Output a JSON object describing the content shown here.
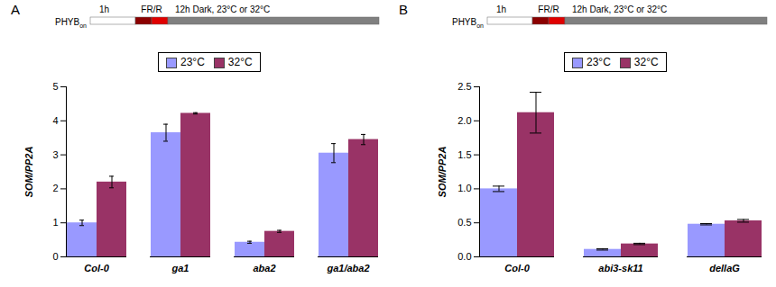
{
  "chart_data": [
    {
      "type": "bar",
      "panel": "A",
      "timeline": {
        "label": "PHYB",
        "label_subscript": "on",
        "segments": [
          "1h",
          "FR/R",
          "12h Dark, 23°C or 32°C"
        ]
      },
      "y_label": "SOM/PP2A",
      "categories": [
        "Col-0",
        "ga1",
        "aba2",
        "ga1/aba2"
      ],
      "series": [
        {
          "name": "23°C",
          "color": "#9999ff",
          "values": [
            1.0,
            3.65,
            0.43,
            3.05
          ],
          "errors": [
            0.08,
            0.25,
            0.03,
            0.28
          ]
        },
        {
          "name": "32°C",
          "color": "#993366",
          "values": [
            2.2,
            4.22,
            0.75,
            3.45
          ],
          "errors": [
            0.17,
            0.02,
            0.03,
            0.15
          ]
        }
      ],
      "ylim": [
        0,
        5
      ],
      "yticks": [
        0,
        1,
        2,
        3,
        4,
        5
      ],
      "grid": false,
      "legend": "top"
    },
    {
      "type": "bar",
      "panel": "B",
      "timeline": {
        "label": "PHYB",
        "label_subscript": "on",
        "segments": [
          "1h",
          "FR/R",
          "12h Dark, 23°C or 32°C"
        ]
      },
      "y_label": "SOM/PP2A",
      "categories": [
        "Col-0",
        "abi3-sk11",
        "dellaG"
      ],
      "series": [
        {
          "name": "23°C",
          "color": "#9999ff",
          "values": [
            1.0,
            0.11,
            0.48
          ],
          "errors": [
            0.04,
            0.01,
            0.01
          ]
        },
        {
          "name": "32°C",
          "color": "#993366",
          "values": [
            2.12,
            0.19,
            0.53
          ],
          "errors": [
            0.3,
            0.01,
            0.02
          ]
        }
      ],
      "ylim": [
        0,
        2.5
      ],
      "yticks": [
        {
          "value": 0,
          "label": "0.0"
        },
        {
          "value": 0.5,
          "label": "0.5"
        },
        {
          "value": 1,
          "label": "1.0"
        },
        {
          "value": 1.5,
          "label": "1.5"
        },
        {
          "value": 2,
          "label": "2.0"
        },
        {
          "value": 2.5,
          "label": "2.5"
        }
      ],
      "grid": false,
      "legend": "top"
    }
  ]
}
